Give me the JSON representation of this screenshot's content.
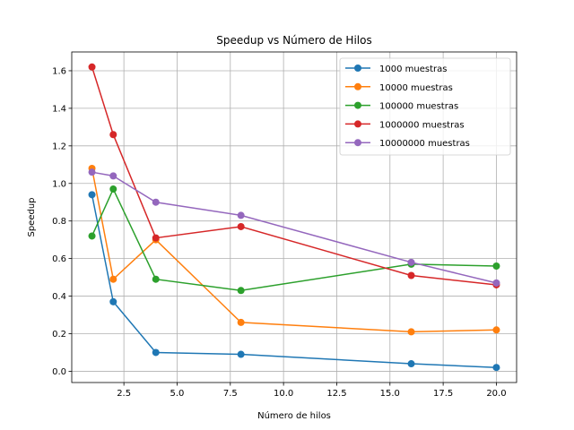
{
  "chart_data": {
    "type": "line",
    "title": "Speedup vs Número de Hilos",
    "xlabel": "Número de hilos",
    "ylabel": "Speedup",
    "xlim": [
      0.05,
      20.95
    ],
    "ylim": [
      -0.06,
      1.7
    ],
    "xticks": [
      2.5,
      5.0,
      7.5,
      10.0,
      12.5,
      15.0,
      17.5,
      20.0
    ],
    "xtick_labels": [
      "2.5",
      "5.0",
      "7.5",
      "10.0",
      "12.5",
      "15.0",
      "17.5",
      "20.0"
    ],
    "yticks": [
      0.0,
      0.2,
      0.4,
      0.6,
      0.8,
      1.0,
      1.2,
      1.4,
      1.6
    ],
    "ytick_labels": [
      "0.0",
      "0.2",
      "0.4",
      "0.6",
      "0.8",
      "1.0",
      "1.2",
      "1.4",
      "1.6"
    ],
    "grid": true,
    "legend_position": "upper right",
    "x": [
      1,
      2,
      4,
      8,
      16,
      20
    ],
    "series": [
      {
        "name": "1000 muestras",
        "color": "#1f77b4",
        "values": [
          0.94,
          0.37,
          0.1,
          0.09,
          0.04,
          0.02
        ]
      },
      {
        "name": "10000 muestras",
        "color": "#ff7f0e",
        "values": [
          1.08,
          0.49,
          0.7,
          0.26,
          0.21,
          0.22
        ]
      },
      {
        "name": "100000 muestras",
        "color": "#2ca02c",
        "values": [
          0.72,
          0.97,
          0.49,
          0.43,
          0.57,
          0.56
        ]
      },
      {
        "name": "1000000 muestras",
        "color": "#d62728",
        "values": [
          1.62,
          1.26,
          0.71,
          0.77,
          0.51,
          0.46
        ]
      },
      {
        "name": "10000000 muestras",
        "color": "#9467bd",
        "values": [
          1.06,
          1.04,
          0.9,
          0.83,
          0.58,
          0.47
        ]
      }
    ]
  }
}
